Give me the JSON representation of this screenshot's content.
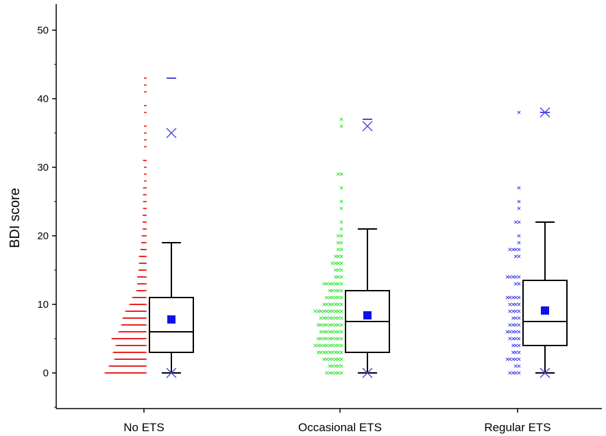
{
  "chart_data": {
    "type": "boxplot",
    "ylabel": "BDI score",
    "ylim": [
      -5,
      54
    ],
    "yticks": [
      0,
      10,
      20,
      30,
      40,
      50
    ],
    "grid": false,
    "legend": "none",
    "categories": [
      "No ETS",
      "Occasional ETS",
      "Regular ETS"
    ],
    "groups": [
      {
        "name": "No ETS",
        "color": "#e8201b",
        "marker": "dash",
        "box": {
          "q1": 3,
          "median": 6,
          "q3": 11,
          "whisker_low": 0,
          "whisker_high": 19,
          "mean": 7.8
        },
        "extremes": [
          0,
          35
        ],
        "max_marker": 43,
        "points": [
          {
            "y": 0,
            "n": 58
          },
          {
            "y": 1,
            "n": 52
          },
          {
            "y": 2,
            "n": 44
          },
          {
            "y": 3,
            "n": 46
          },
          {
            "y": 4,
            "n": 42
          },
          {
            "y": 5,
            "n": 48
          },
          {
            "y": 6,
            "n": 38
          },
          {
            "y": 7,
            "n": 34
          },
          {
            "y": 8,
            "n": 32
          },
          {
            "y": 9,
            "n": 28
          },
          {
            "y": 10,
            "n": 22
          },
          {
            "y": 11,
            "n": 18
          },
          {
            "y": 12,
            "n": 12
          },
          {
            "y": 13,
            "n": 11
          },
          {
            "y": 14,
            "n": 11
          },
          {
            "y": 15,
            "n": 9
          },
          {
            "y": 16,
            "n": 8
          },
          {
            "y": 17,
            "n": 8
          },
          {
            "y": 18,
            "n": 6
          },
          {
            "y": 19,
            "n": 5
          },
          {
            "y": 20,
            "n": 4
          },
          {
            "y": 21,
            "n": 3
          },
          {
            "y": 22,
            "n": 3
          },
          {
            "y": 23,
            "n": 3
          },
          {
            "y": 24,
            "n": 2
          },
          {
            "y": 25,
            "n": 2
          },
          {
            "y": 26,
            "n": 2
          },
          {
            "y": 27,
            "n": 2
          },
          {
            "y": 28,
            "n": 1
          },
          {
            "y": 29,
            "n": 1
          },
          {
            "y": 30,
            "n": 1
          },
          {
            "y": 31,
            "n": 2
          },
          {
            "y": 33,
            "n": 1
          },
          {
            "y": 34,
            "n": 1
          },
          {
            "y": 35,
            "n": 1
          },
          {
            "y": 36,
            "n": 1
          },
          {
            "y": 38,
            "n": 1
          },
          {
            "y": 39,
            "n": 1
          },
          {
            "y": 41,
            "n": 1
          },
          {
            "y": 42,
            "n": 1
          },
          {
            "y": 43,
            "n": 1
          }
        ]
      },
      {
        "name": "Occasional ETS",
        "color": "#28e02a",
        "marker": "x",
        "box": {
          "q1": 3,
          "median": 7.5,
          "q3": 12,
          "whisker_low": 0,
          "whisker_high": 21,
          "mean": 8.4
        },
        "extremes": [
          0,
          36
        ],
        "max_marker": 37,
        "points": [
          {
            "y": 0,
            "n": 6
          },
          {
            "y": 1,
            "n": 5
          },
          {
            "y": 2,
            "n": 7
          },
          {
            "y": 3,
            "n": 9
          },
          {
            "y": 4,
            "n": 10
          },
          {
            "y": 5,
            "n": 9
          },
          {
            "y": 6,
            "n": 8
          },
          {
            "y": 7,
            "n": 9
          },
          {
            "y": 8,
            "n": 8
          },
          {
            "y": 9,
            "n": 10
          },
          {
            "y": 10,
            "n": 7
          },
          {
            "y": 11,
            "n": 6
          },
          {
            "y": 12,
            "n": 5
          },
          {
            "y": 13,
            "n": 7
          },
          {
            "y": 14,
            "n": 3
          },
          {
            "y": 15,
            "n": 3
          },
          {
            "y": 16,
            "n": 4
          },
          {
            "y": 17,
            "n": 3
          },
          {
            "y": 18,
            "n": 2
          },
          {
            "y": 19,
            "n": 2
          },
          {
            "y": 20,
            "n": 2
          },
          {
            "y": 21,
            "n": 1
          },
          {
            "y": 22,
            "n": 1
          },
          {
            "y": 24,
            "n": 1
          },
          {
            "y": 25,
            "n": 1
          },
          {
            "y": 27,
            "n": 1
          },
          {
            "y": 29,
            "n": 2
          },
          {
            "y": 36,
            "n": 1
          },
          {
            "y": 37,
            "n": 1
          }
        ]
      },
      {
        "name": "Regular ETS",
        "color": "#3a3ae0",
        "marker": "x",
        "box": {
          "q1": 4,
          "median": 7.5,
          "q3": 13.5,
          "whisker_low": 0,
          "whisker_high": 22,
          "mean": 9.1
        },
        "extremes": [
          0,
          38
        ],
        "max_marker": 38,
        "points": [
          {
            "y": 0,
            "n": 4
          },
          {
            "y": 1,
            "n": 2
          },
          {
            "y": 2,
            "n": 5
          },
          {
            "y": 3,
            "n": 3
          },
          {
            "y": 4,
            "n": 3
          },
          {
            "y": 5,
            "n": 4
          },
          {
            "y": 6,
            "n": 5
          },
          {
            "y": 7,
            "n": 4
          },
          {
            "y": 8,
            "n": 3
          },
          {
            "y": 9,
            "n": 4
          },
          {
            "y": 10,
            "n": 4
          },
          {
            "y": 11,
            "n": 5
          },
          {
            "y": 13,
            "n": 2
          },
          {
            "y": 14,
            "n": 5
          },
          {
            "y": 17,
            "n": 2
          },
          {
            "y": 18,
            "n": 4
          },
          {
            "y": 19,
            "n": 1
          },
          {
            "y": 20,
            "n": 1
          },
          {
            "y": 22,
            "n": 2
          },
          {
            "y": 24,
            "n": 1
          },
          {
            "y": 25,
            "n": 1
          },
          {
            "y": 27,
            "n": 1
          },
          {
            "y": 38,
            "n": 1
          }
        ]
      }
    ],
    "colors": {
      "mean_marker": "#1010e8",
      "extreme_marker": "#4848e0",
      "box_stroke": "#000000"
    }
  }
}
